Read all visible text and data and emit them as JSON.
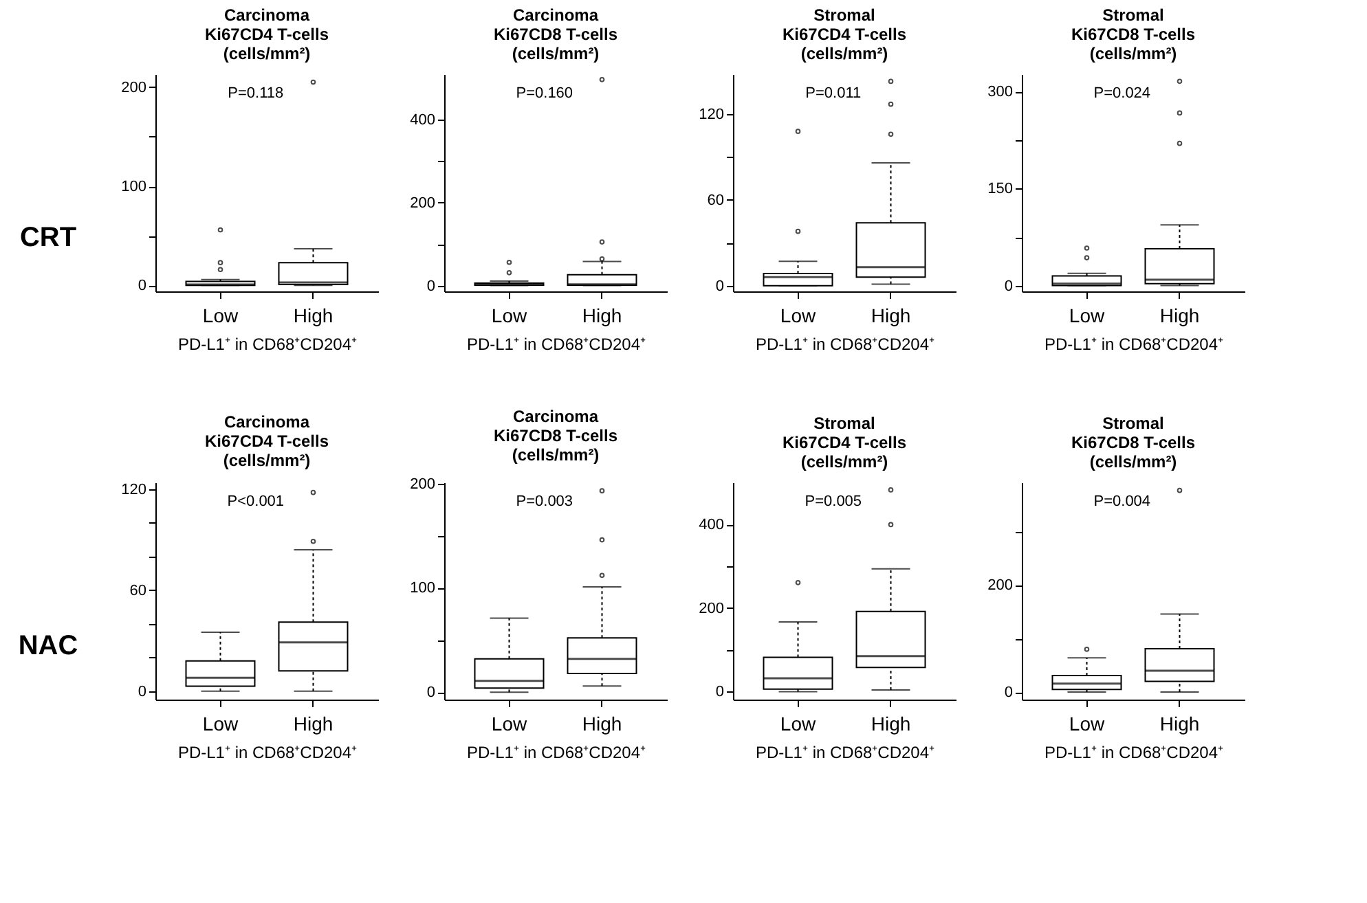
{
  "chart_data": [
    {
      "type": "other",
      "annotations": [
        "CRT"
      ]
    },
    {
      "type": "box",
      "title": "Carcinoma\nKi67CD4 T-cells\n(cells/mm²)",
      "xlabel": "PD-L1⁺ in CD68⁺CD204⁺",
      "categories": [
        "Low",
        "High"
      ],
      "annotations": [
        "P=0.118"
      ],
      "ylim": [
        -6,
        213
      ],
      "yticks": [
        0,
        {
          "value": 50,
          "label": null
        },
        100,
        {
          "value": 150,
          "label": null
        },
        200
      ],
      "boxes": [
        {
          "low": 0,
          "q1": 0,
          "median": 1,
          "q3": 4,
          "high": 6,
          "outliers": [
            16,
            23,
            56
          ]
        },
        {
          "low": 0,
          "q1": 1,
          "median": 3,
          "q3": 23,
          "high": 37,
          "outliers": [
            205
          ]
        }
      ]
    },
    {
      "type": "box",
      "title": "Carcinoma\nKi67CD8 T-cells\n(cells/mm²)",
      "xlabel": "PD-L1⁺ in CD68⁺CD204⁺",
      "categories": [
        "Low",
        "High"
      ],
      "annotations": [
        "P=0.160"
      ],
      "ylim": [
        -14,
        509
      ],
      "yticks": [
        0,
        {
          "value": 100,
          "label": null
        },
        200,
        {
          "value": 300,
          "label": null
        },
        400
      ],
      "boxes": [
        {
          "low": 0,
          "q1": 1,
          "median": 3,
          "q3": 6,
          "high": 11,
          "outliers": [
            31,
            56
          ]
        },
        {
          "low": 0,
          "q1": 1,
          "median": 3,
          "q3": 26,
          "high": 58,
          "outliers": [
            64,
            105,
            496
          ]
        }
      ]
    },
    {
      "type": "box",
      "title": "Stromal\nKi67CD4 T-cells\n(cells/mm²)",
      "xlabel": "PD-L1⁺ in CD68⁺CD204⁺",
      "categories": [
        "Low",
        "High"
      ],
      "annotations": [
        "P=0.011"
      ],
      "ylim": [
        -4,
        148
      ],
      "yticks": [
        0,
        {
          "value": 30,
          "label": null
        },
        60,
        {
          "value": 90,
          "label": null
        },
        120
      ],
      "boxes": [
        {
          "low": 0,
          "q1": 0,
          "median": 6,
          "q3": 8.5,
          "high": 17,
          "outliers": [
            38,
            108
          ]
        },
        {
          "low": 1,
          "q1": 6,
          "median": 13,
          "q3": 44,
          "high": 86,
          "outliers": [
            106,
            127,
            143
          ]
        }
      ]
    },
    {
      "type": "box",
      "title": "Stromal\nKi67CD8 T-cells\n(cells/mm²)",
      "xlabel": "PD-L1⁺ in CD68⁺CD204⁺",
      "categories": [
        "Low",
        "High"
      ],
      "annotations": [
        "P=0.024"
      ],
      "ylim": [
        -9,
        327
      ],
      "yticks": [
        0,
        {
          "value": 75,
          "label": null
        },
        150,
        {
          "value": 225,
          "label": null
        },
        300
      ],
      "boxes": [
        {
          "low": 0,
          "q1": 0,
          "median": 3,
          "q3": 15,
          "high": 19,
          "outliers": [
            43,
            58
          ]
        },
        {
          "low": 0,
          "q1": 3,
          "median": 9,
          "q3": 57,
          "high": 94,
          "outliers": [
            220,
            267,
            316
          ]
        }
      ]
    },
    {
      "type": "other",
      "annotations": [
        "NAC"
      ]
    },
    {
      "type": "box",
      "title": "Carcinoma\nKi67CD4 T-cells\n(cells/mm²)",
      "xlabel": "PD-L1⁺ in CD68⁺CD204⁺",
      "categories": [
        "Low",
        "High"
      ],
      "annotations": [
        "P<0.001"
      ],
      "ylim": [
        -5,
        124
      ],
      "yticks": [
        0,
        {
          "value": 20,
          "label": null
        },
        {
          "value": 40,
          "label": null
        },
        60,
        {
          "value": 80,
          "label": null
        },
        {
          "value": 100,
          "label": null
        },
        120
      ],
      "boxes": [
        {
          "low": 0,
          "q1": 3,
          "median": 8,
          "q3": 18,
          "high": 35
        },
        {
          "low": 0,
          "q1": 12,
          "median": 29,
          "q3": 41,
          "high": 84,
          "outliers": [
            89,
            118
          ]
        }
      ]
    },
    {
      "type": "box",
      "title": "Carcinoma\nKi67CD8 T-cells\n(cells/mm²)",
      "xlabel": "PD-L1⁺ in CD68⁺CD204⁺",
      "categories": [
        "Low",
        "High"
      ],
      "annotations": [
        "P=0.003"
      ],
      "ylim": [
        -7,
        201
      ],
      "yticks": [
        0,
        {
          "value": 50,
          "label": null
        },
        100,
        {
          "value": 150,
          "label": null
        },
        200
      ],
      "boxes": [
        {
          "low": 0,
          "q1": 4,
          "median": 11,
          "q3": 32,
          "high": 71
        },
        {
          "low": 6,
          "q1": 18,
          "median": 32,
          "q3": 52,
          "high": 101,
          "outliers": [
            112,
            146,
            193
          ]
        }
      ]
    },
    {
      "type": "box",
      "title": "Stromal\nKi67CD4 T-cells\n(cells/mm²)",
      "xlabel": "PD-L1⁺ in CD68⁺CD204⁺",
      "categories": [
        "Low",
        "High"
      ],
      "annotations": [
        "P=0.005"
      ],
      "ylim": [
        -19,
        501
      ],
      "yticks": [
        0,
        {
          "value": 100,
          "label": null
        },
        200,
        {
          "value": 300,
          "label": null
        },
        400
      ],
      "boxes": [
        {
          "low": 0,
          "q1": 6,
          "median": 32,
          "q3": 82,
          "high": 167,
          "outliers": [
            261
          ]
        },
        {
          "low": 4,
          "q1": 58,
          "median": 85,
          "q3": 192,
          "high": 294,
          "outliers": [
            400,
            483
          ]
        }
      ]
    },
    {
      "type": "box",
      "title": "Stromal\nKi67CD8 T-cells\n(cells/mm²)",
      "xlabel": "PD-L1⁺ in CD68⁺CD204⁺",
      "categories": [
        "Low",
        "High"
      ],
      "annotations": [
        "P=0.004"
      ],
      "ylim": [
        -14,
        392
      ],
      "yticks": [
        0,
        {
          "value": 100,
          "label": null
        },
        200,
        {
          "value": 300,
          "label": null
        }
      ],
      "boxes": [
        {
          "low": 0,
          "q1": 5,
          "median": 16,
          "q3": 31,
          "high": 64,
          "outliers": [
            80
          ]
        },
        {
          "low": 0,
          "q1": 20,
          "median": 40,
          "q3": 81,
          "high": 146,
          "outliers": [
            377
          ]
        }
      ]
    }
  ]
}
